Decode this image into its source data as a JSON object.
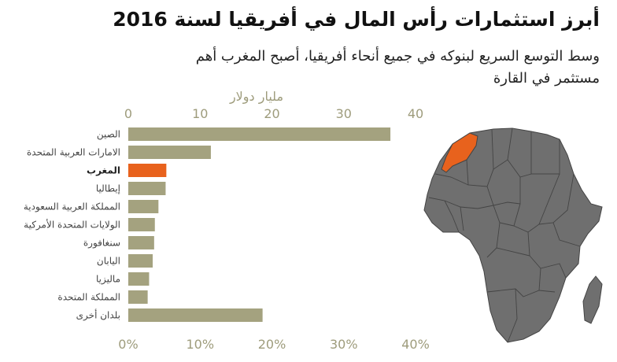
{
  "title": "أبرز استثمارات رأس المال في أفريقيا لسنة 2016",
  "subtitle": "وسط التوسع السريع لبنوكه في جميع أنحاء أفريقيا، أصبح المغرب أهم مستثمر في القارة",
  "colors": {
    "bar": "#a4a27f",
    "highlight": "#e8621d",
    "axis_text": "#9e9c7c",
    "grid": "#e6e5dc",
    "map_land": "#6f6f6f",
    "map_border": "#444444"
  },
  "icons": {
    "map": "africa-map-icon"
  },
  "chart_data": {
    "type": "bar",
    "orientation": "horizontal",
    "categories": [
      "الصين",
      "الامارات العربية المتحدة",
      "المغرب",
      "إيطاليا",
      "المملكة العربية السعودية",
      "الولايات المتحدة الأمركية",
      "سنغافورة",
      "اليابان",
      "ماليزيا",
      "المملكة المتحدة",
      "بلدان أخرى"
    ],
    "values": [
      36.5,
      11.5,
      5.3,
      5.2,
      4.2,
      3.7,
      3.6,
      3.4,
      2.9,
      2.7,
      18.7
    ],
    "highlight_index": 2,
    "xlabel": "مليار دولار",
    "xlim": [
      0,
      40
    ],
    "top_ticks": [
      "0",
      "10",
      "20",
      "30",
      "40"
    ],
    "bottom_ticks": [
      "0%",
      "10%",
      "20%",
      "30%",
      "40%"
    ],
    "grid": false
  }
}
